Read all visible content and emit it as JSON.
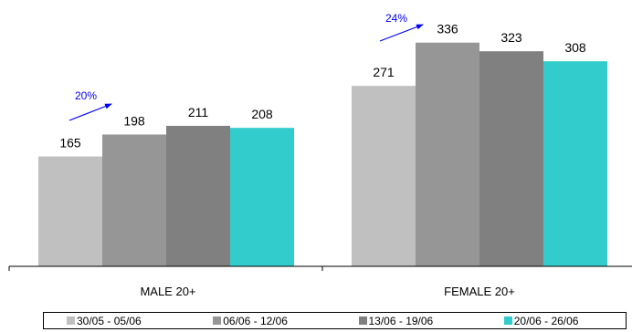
{
  "chart_data": {
    "type": "bar",
    "categories": [
      "MALE 20+",
      "FEMALE 20+"
    ],
    "series": [
      {
        "name": "30/05 - 05/06",
        "values": [
          165,
          271
        ],
        "color": "#c0c0c0"
      },
      {
        "name": "06/06 - 12/06",
        "values": [
          198,
          336
        ],
        "color": "#969696"
      },
      {
        "name": "13/06 - 19/06",
        "values": [
          211,
          323
        ],
        "color": "#808080"
      },
      {
        "name": "20/06 - 26/06",
        "values": [
          208,
          308
        ],
        "color": "#33cccc"
      }
    ],
    "annotations": [
      {
        "text": "20%",
        "category": "MALE 20+",
        "color": "#0000ff"
      },
      {
        "text": "24%",
        "category": "FEMALE 20+",
        "color": "#0000ff"
      }
    ],
    "ylim": [
      0,
      400
    ],
    "grid": false,
    "legend": "bottom"
  }
}
